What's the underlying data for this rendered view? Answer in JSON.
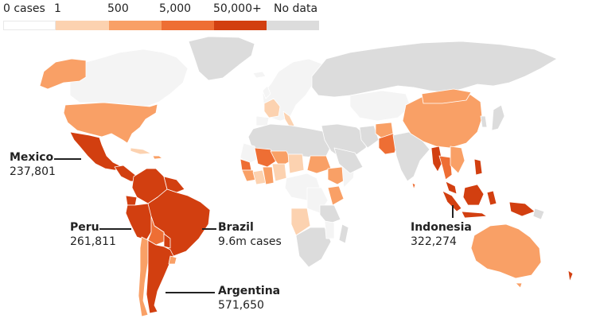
{
  "legend": {
    "labels": [
      "0 cases",
      "1",
      "500",
      "5,000",
      "50,000+",
      "No data"
    ],
    "colors": {
      "zero": "#ffffff",
      "bin1": "#fcd2b0",
      "bin2": "#f9a066",
      "bin3": "#ee6e34",
      "bin4": "#d23f10",
      "nodata": "#dcdcdc",
      "land_zero": "#f4f4f4"
    }
  },
  "callouts": {
    "mexico": {
      "name": "Mexico",
      "value": "237,801"
    },
    "peru": {
      "name": "Peru",
      "value": "261,811"
    },
    "brazil": {
      "name": "Brazil",
      "value": "9.6m cases"
    },
    "argentina": {
      "name": "Argentina",
      "value": "571,650"
    },
    "indonesia": {
      "name": "Indonesia",
      "value": "322,274"
    }
  }
}
